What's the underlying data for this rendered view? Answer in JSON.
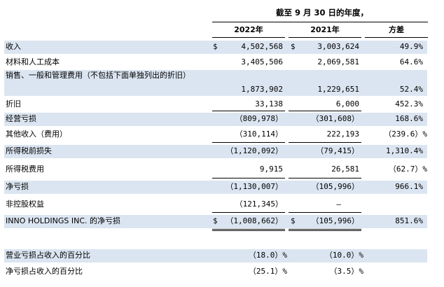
{
  "header": {
    "period": "截至 9 月 30 日的年度，",
    "col_2022": "2022年",
    "col_2021": "2021年",
    "col_diff": "方差"
  },
  "rows": [
    {
      "label": "收入",
      "dollar_2022": "$",
      "v2022": "4,502,568",
      "dollar_2021": "$",
      "v2021": "3,003,624",
      "diff": "49.9%"
    },
    {
      "label": "材料和人工成本",
      "v2022": "3,405,506",
      "v2021": "2,069,581",
      "diff": "64.6%"
    },
    {
      "label": "销售、一般和管理费用（不包括下面单独列出的折旧）",
      "v2022": "1,873,902",
      "v2021": "1,229,651",
      "diff": "52.4%"
    },
    {
      "label": "折旧",
      "v2022": "33,138",
      "v2021": "6,000",
      "diff": "452.3%"
    },
    {
      "label": "经营亏损",
      "v2022": "（809,978）",
      "v2021": "（301,608）",
      "diff": "168.6%"
    },
    {
      "label": "其他收入（费用）",
      "v2022": "（310,114）",
      "v2021": "222,193",
      "diff": "（239.6）%"
    },
    {
      "label": "所得税前损失",
      "v2022": "（1,120,092）",
      "v2021": "（79,415）",
      "diff": "1,310.4%"
    },
    {
      "label": "所得税费用",
      "v2022": "9,915",
      "v2021": "26,581",
      "diff": "（62.7）%"
    },
    {
      "label": "净亏损",
      "v2022": "（1,130,007）",
      "v2021": "（105,996）",
      "diff": "966.1%"
    },
    {
      "label": "非控股权益",
      "v2022": "（121,345）",
      "v2021": "—",
      "diff": ""
    },
    {
      "label": "INNO HOLDINGS INC. 的净亏损",
      "dollar_2022": "$",
      "v2022": "（1,008,662）",
      "dollar_2021": "$",
      "v2021": "（105,996）",
      "diff": "851.6%"
    },
    {
      "label": "营业亏损占收入的百分比",
      "v2022": "（18.0）%",
      "v2021": "（10.0）%",
      "diff": ""
    },
    {
      "label": "净亏损占收入的百分比",
      "v2022": "（25.1）%",
      "v2021": "（3.5）%",
      "diff": ""
    }
  ]
}
